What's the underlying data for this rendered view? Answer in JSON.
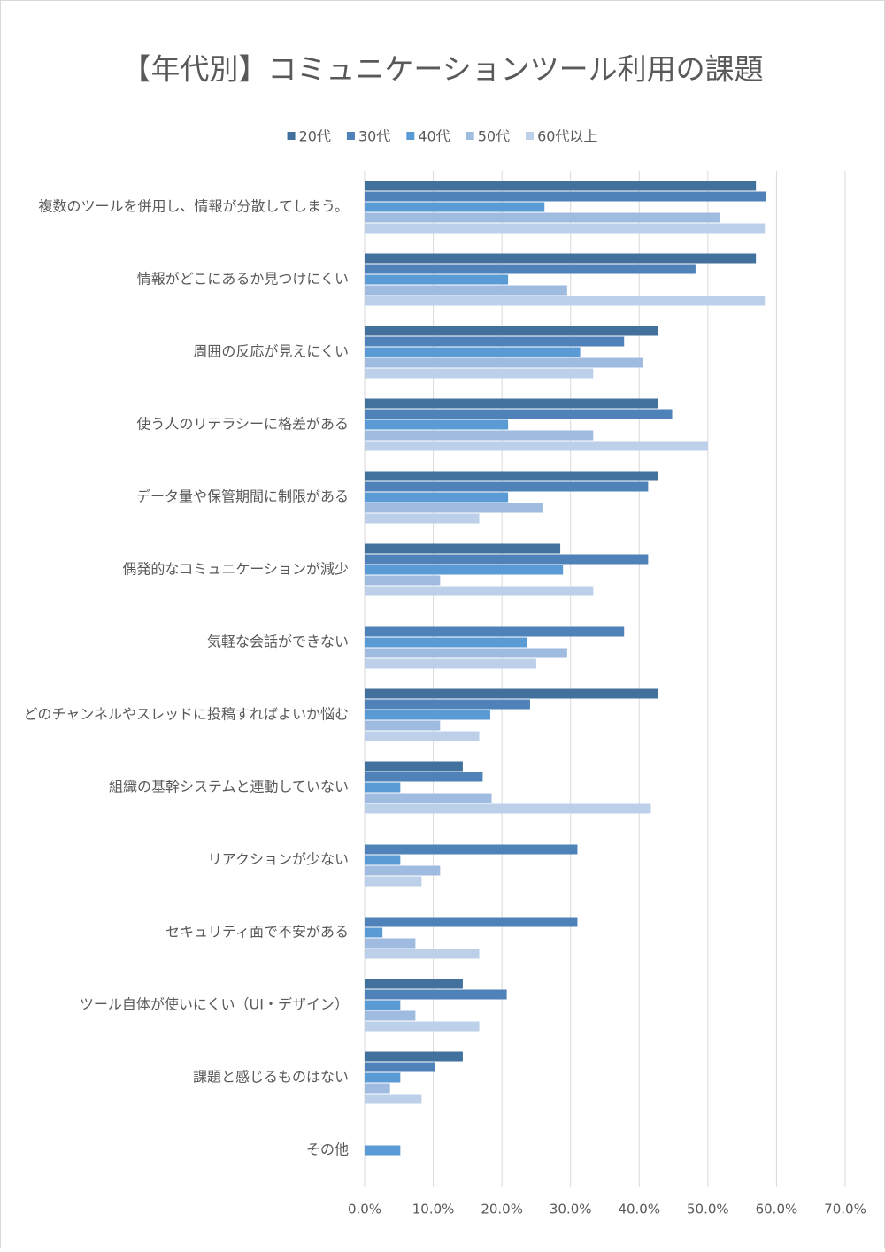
{
  "chart_data": {
    "type": "hbar",
    "title": "【年代別】コミュニケーションツール利用の課題",
    "categories": [
      "複数のツールを併用し、情報が分散してしまう。",
      "情報がどこにあるか見つけにくい",
      "周囲の反応が見えにくい",
      "使う人のリテラシーに格差がある",
      "データ量や保管期間に制限がある",
      "偶発的なコミュニケーションが減少",
      "気軽な会話ができない",
      "どのチャンネルやスレッドに投稿すればよいか悩む",
      "組織の基幹システムと連動していない",
      "リアクションが少ない",
      "セキュリティ面で不安がある",
      "ツール自体が使いにくい（UI・デザイン）",
      "課題と感じるものはない",
      "その他"
    ],
    "series": [
      {
        "name": "20代",
        "color": "#41719c",
        "values": [
          57.0,
          57.0,
          42.8,
          42.8,
          42.8,
          28.5,
          0,
          42.8,
          14.3,
          0,
          0,
          14.3,
          14.3,
          0
        ]
      },
      {
        "name": "30代",
        "color": "#4e82b8",
        "values": [
          58.5,
          48.2,
          37.8,
          44.8,
          41.3,
          41.3,
          37.8,
          24.1,
          17.2,
          31.0,
          31.0,
          20.7,
          10.3,
          0
        ]
      },
      {
        "name": "40代",
        "color": "#5b9bd5",
        "values": [
          26.2,
          20.9,
          31.4,
          20.9,
          20.9,
          28.9,
          23.6,
          18.3,
          5.2,
          5.2,
          2.6,
          5.2,
          5.2,
          5.2
        ]
      },
      {
        "name": "50代",
        "color": "#a0bbe0",
        "values": [
          51.7,
          29.5,
          40.6,
          33.3,
          25.9,
          11.0,
          29.5,
          11.0,
          18.5,
          11.0,
          7.4,
          7.4,
          3.7,
          0
        ]
      },
      {
        "name": "60代以上",
        "color": "#bdd0ea",
        "values": [
          58.3,
          58.3,
          33.3,
          50.0,
          16.7,
          33.3,
          25.0,
          16.7,
          41.7,
          8.3,
          16.7,
          16.7,
          8.3,
          0
        ]
      }
    ],
    "xlim": [
      0,
      70
    ],
    "xticks": [
      {
        "value": 0,
        "label": "0.0%"
      },
      {
        "value": 10,
        "label": "10.0%"
      },
      {
        "value": 20,
        "label": "20.0%"
      },
      {
        "value": 30,
        "label": "30.0%"
      },
      {
        "value": 40,
        "label": "40.0%"
      },
      {
        "value": 50,
        "label": "50.0%"
      },
      {
        "value": 60,
        "label": "60.0%"
      },
      {
        "value": 70,
        "label": "70.0%"
      }
    ],
    "grid": true,
    "legend_position": "top"
  }
}
